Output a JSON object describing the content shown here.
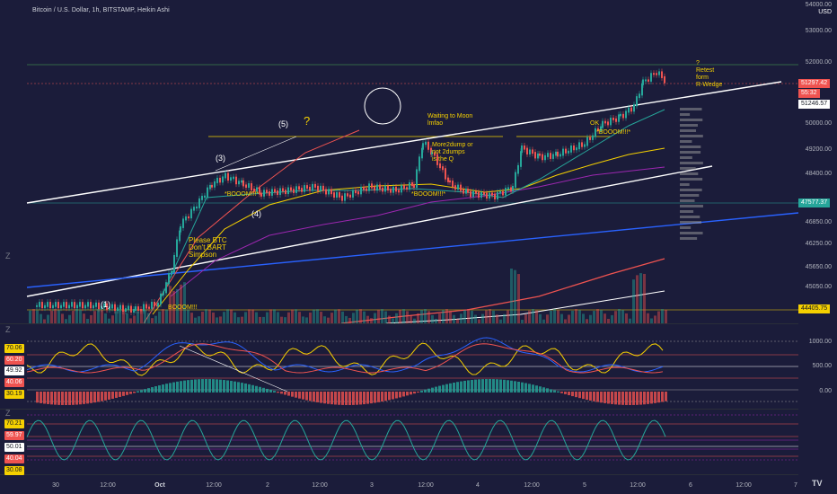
{
  "header": {
    "title": "Bitcoin / U.S. Dollar, 1h, BITSTAMP, Heikin Ashi",
    "currency": "USD",
    "top_price": "54000.00"
  },
  "price_axis": [
    "53000.00",
    "52000.00",
    "50000.00",
    "49200.00",
    "48400.00",
    "46850.00",
    "46250.00",
    "45650.00",
    "45050.00"
  ],
  "price_tags": {
    "current": "51297.42",
    "countdown": "55:32",
    "level_high": "51246.57",
    "level_mid": "47577.37",
    "level_low": "44405.75"
  },
  "osc1": {
    "axis": [
      "1000.00",
      "500.00",
      "0.00"
    ],
    "tags": [
      "70.06",
      "60.20",
      "49.92",
      "40.06",
      "30.19"
    ]
  },
  "osc2": {
    "tags": [
      "70.21",
      "59.97",
      "50.01",
      "40.04",
      "30.08"
    ]
  },
  "time_axis": [
    "30",
    "12:00",
    "Oct",
    "12:00",
    "2",
    "12:00",
    "3",
    "12:00",
    "4",
    "12:00",
    "5",
    "12:00",
    "6",
    "12:00",
    "7"
  ],
  "annotations": {
    "wave1": "(1)",
    "wave3": "(3)",
    "wave4": "(4)",
    "wave5": "(5)",
    "question": "?",
    "please": "Please BTC\nDon't BART\nSimpson",
    "waiting": "Waiting to Moon\nlmfao",
    "more2dump": "More2dump or\nnot 2dumps\nis the Q",
    "retest": "?\nRetest\nform\nR-Wedge",
    "boom1": "*BOOOM!!!*",
    "boom2": "*BOOOM!!!*",
    "boom3": "*BOOOM!!!*",
    "boom4": "BOOOM!!!",
    "ok": "OK"
  },
  "buttons": {
    "z_top": "Z",
    "z_mid": "Z",
    "z_bottom": "Z",
    "logo": "TV"
  },
  "colors": {
    "background": "#1b1c3a",
    "up_candle": "#26a69a",
    "down_candle": "#ef5350",
    "channel": "#ffffff",
    "yellow": "#f5d000",
    "blue_line": "#2962ff",
    "red_line": "#e53935",
    "purple_line": "#9c27b0"
  }
}
